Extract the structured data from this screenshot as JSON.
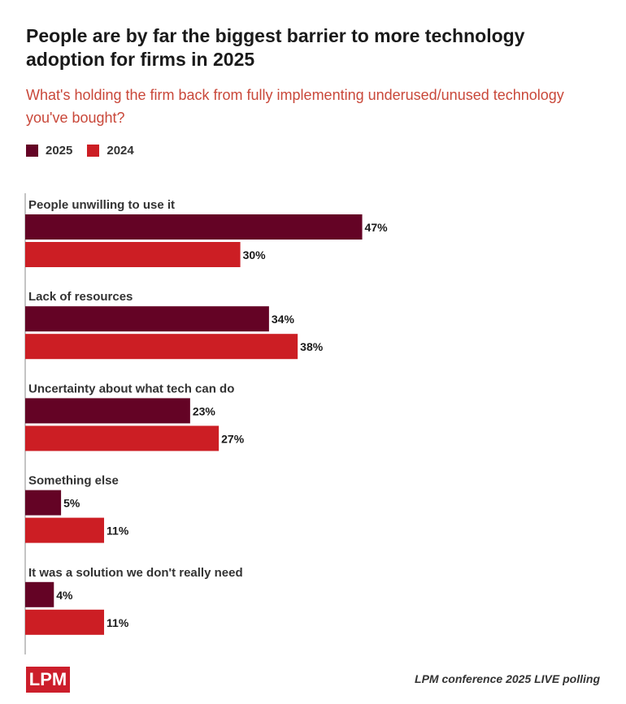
{
  "chart_data": {
    "type": "bar",
    "orientation": "horizontal",
    "title": "People are by far the biggest barrier to more technology adoption for firms in 2025",
    "subtitle": "What's holding the firm back from fully implementing underused/unused technology you've bought?",
    "categories": [
      "People unwilling to use it",
      "Lack of resources",
      "Uncertainty about what tech can do",
      "Something else",
      "It was a solution we don't really need"
    ],
    "series": [
      {
        "name": "2025",
        "color": "#640325",
        "values": [
          47,
          34,
          23,
          5,
          4
        ],
        "labels": [
          "47%",
          "34%",
          "23%",
          "5%",
          "4%"
        ]
      },
      {
        "name": "2024",
        "color": "#cc1e24",
        "values": [
          30,
          38,
          27,
          11,
          11
        ],
        "labels": [
          "30%",
          "38%",
          "27%",
          "11%",
          "11%"
        ]
      }
    ],
    "legend_position": "top-left",
    "grid": false
  },
  "footer": {
    "logo": "LPM",
    "source": "LPM conference 2025 LIVE polling"
  }
}
